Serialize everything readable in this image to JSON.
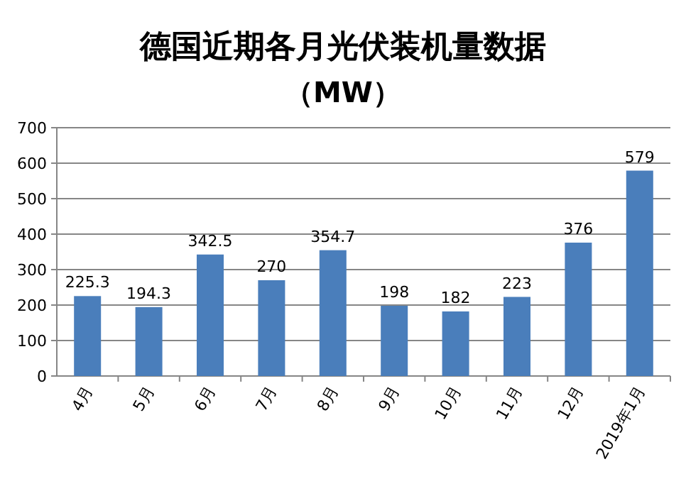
{
  "chart_data": {
    "type": "bar",
    "title": "德国近期各月光伏装机量数据",
    "subtitle": "（MW）",
    "categories": [
      "4月",
      "5月",
      "6月",
      "7月",
      "8月",
      "9月",
      "10月",
      "11月",
      "12月",
      "2019年1月"
    ],
    "values": [
      225.3,
      194.3,
      342.5,
      270,
      354.7,
      198,
      182,
      223,
      376,
      579
    ],
    "color": "#4a7ebb",
    "ylim": [
      0,
      700
    ],
    "yticks": [
      0,
      100,
      200,
      300,
      400,
      500,
      600,
      700
    ],
    "grid": "y",
    "data_labels": true
  }
}
